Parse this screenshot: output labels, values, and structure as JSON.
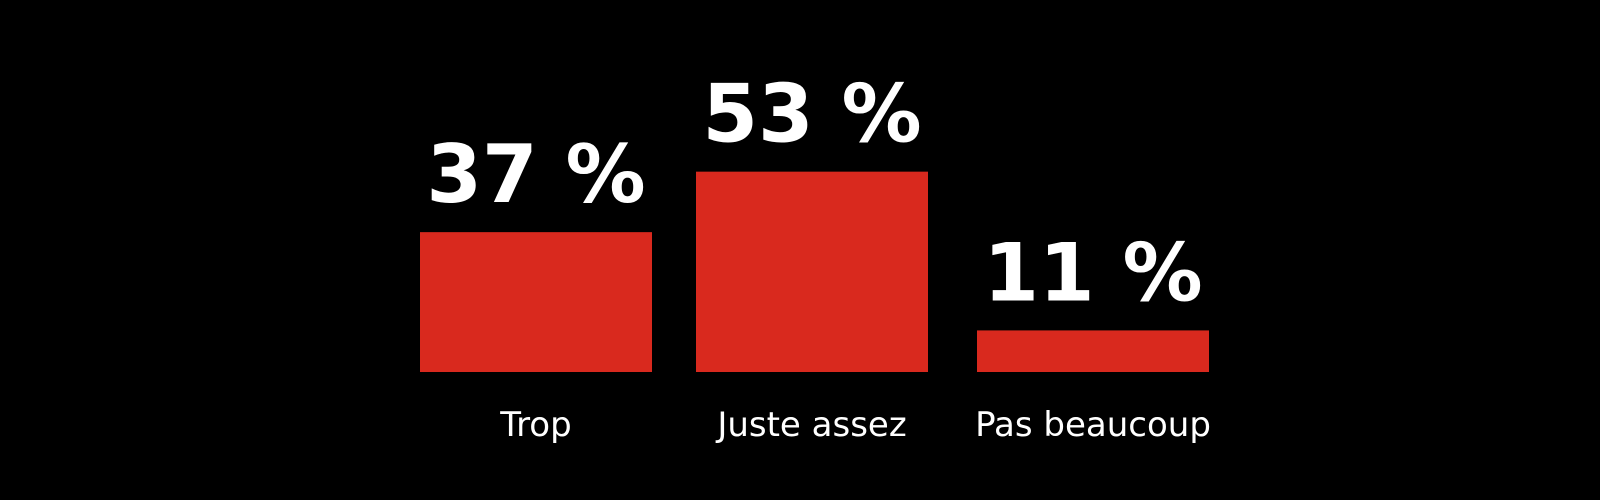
{
  "chart_data": {
    "type": "bar",
    "categories": [
      "Trop",
      "Juste assez",
      "Pas beaucoup"
    ],
    "values": [
      37,
      53,
      11
    ],
    "value_labels": [
      "37 %",
      "53 %",
      "11 %"
    ],
    "unit": "%",
    "bar_color": "#d9291e",
    "background_color": "#000000",
    "text_color": "#ffffff",
    "grid": false,
    "legend": "none"
  }
}
